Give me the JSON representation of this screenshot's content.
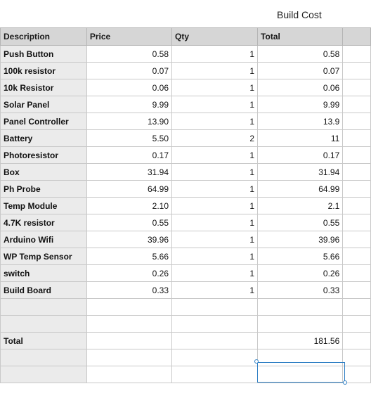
{
  "sheet_title": "Build Cost",
  "headers": [
    "Description",
    "Price",
    "Qty",
    "Total",
    ""
  ],
  "rows": [
    {
      "desc": "Push Button",
      "price": "0.58",
      "qty": "1",
      "total": "0.58"
    },
    {
      "desc": "100k resistor",
      "price": "0.07",
      "qty": "1",
      "total": "0.07"
    },
    {
      "desc": "10k Resistor",
      "price": "0.06",
      "qty": "1",
      "total": "0.06"
    },
    {
      "desc": "Solar Panel",
      "price": "9.99",
      "qty": "1",
      "total": "9.99"
    },
    {
      "desc": "Panel Controller",
      "price": "13.90",
      "qty": "1",
      "total": "13.9"
    },
    {
      "desc": "Battery",
      "price": "5.50",
      "qty": "2",
      "total": "11"
    },
    {
      "desc": "Photoresistor",
      "price": "0.17",
      "qty": "1",
      "total": "0.17"
    },
    {
      "desc": "Box",
      "price": "31.94",
      "qty": "1",
      "total": "31.94"
    },
    {
      "desc": "Ph Probe",
      "price": "64.99",
      "qty": "1",
      "total": "64.99"
    },
    {
      "desc": "Temp Module",
      "price": "2.10",
      "qty": "1",
      "total": "2.1"
    },
    {
      "desc": "4.7K resistor",
      "price": "0.55",
      "qty": "1",
      "total": "0.55"
    },
    {
      "desc": "Arduino Wifi",
      "price": "39.96",
      "qty": "1",
      "total": "39.96"
    },
    {
      "desc": "WP Temp Sensor",
      "price": "5.66",
      "qty": "1",
      "total": "5.66"
    },
    {
      "desc": "switch",
      "price": "0.26",
      "qty": "1",
      "total": "0.26"
    },
    {
      "desc": "Build Board",
      "price": "0.33",
      "qty": "1",
      "total": "0.33"
    },
    {
      "desc": "",
      "price": "",
      "qty": "",
      "total": ""
    },
    {
      "desc": "",
      "price": "",
      "qty": "",
      "total": ""
    },
    {
      "desc": "Total",
      "price": "",
      "qty": "",
      "total": "181.56"
    },
    {
      "desc": "",
      "price": "",
      "qty": "",
      "total": ""
    },
    {
      "desc": "",
      "price": "",
      "qty": "",
      "total": ""
    }
  ],
  "colors": {
    "header_bg": "#d6d6d6",
    "desc_bg": "#ebebeb",
    "selection": "#2f7fc4"
  }
}
